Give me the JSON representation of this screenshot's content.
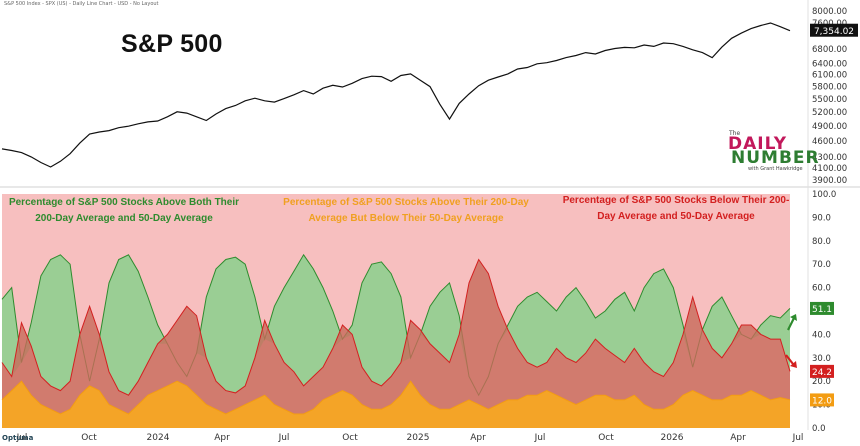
{
  "header_text": "S&P 500 Index - SPX (US) - Daily Line Chart - USD - No Layout",
  "title": "S&P 500",
  "logo": {
    "the": "The",
    "daily": "DAILY",
    "number": "NUMBER",
    "byline": "with Grant Hawkridge"
  },
  "annotations": {
    "green": "Percentage of S&P 500 Stocks Above Both Their 200-Day Average and 50-Day Average",
    "orange": "Percentage of S&P 500 Stocks Above Their 200-Day Average But Below Their 50-Day Average",
    "red": "Percentage of S&P 500 Stocks Below Their 200-Day Average and 50-Day Average"
  },
  "brand_label": "Optuma",
  "colors": {
    "price_line": "#111111",
    "green": "#2e8b2e",
    "green_fill": "#8fcf8f",
    "orange": "#f39c12",
    "orange_fill": "#f5a623",
    "red": "#d32020",
    "red_fill": "#f08a8a",
    "axis_text": "#333333",
    "divider": "#d0d0d0"
  },
  "chart_data": [
    {
      "type": "line",
      "title": "S&P 500",
      "series": [
        {
          "values": [
            4450,
            4420,
            4380,
            4300,
            4200,
            4120,
            4220,
            4360,
            4560,
            4740,
            4780,
            4810,
            4870,
            4900,
            4950,
            4990,
            5010,
            5100,
            5210,
            5180,
            5100,
            5020,
            5160,
            5280,
            5350,
            5460,
            5520,
            5460,
            5430,
            5510,
            5600,
            5700,
            5620,
            5760,
            5830,
            5790,
            5880,
            6000,
            6060,
            6050,
            5930,
            6080,
            6120,
            5960,
            5800,
            5380,
            5050,
            5400,
            5620,
            5820,
            5960,
            6040,
            6120,
            6250,
            6290,
            6390,
            6420,
            6480,
            6560,
            6620,
            6700,
            6660,
            6760,
            6820,
            6850,
            6840,
            6920,
            6880,
            6980,
            6960,
            6880,
            6780,
            6700,
            6560,
            6860,
            7120,
            7280,
            7420,
            7520,
            7600,
            7480,
            7354
          ]
        }
      ],
      "last_value_label": "7,354.02",
      "ylim": [
        3800,
        8100
      ],
      "y_ticks": [
        "8000.00",
        "7600.00",
        "7354.02",
        "6800.00",
        "6400.00",
        "6100.00",
        "5800.00",
        "5500.00",
        "5200.00",
        "4900.00",
        "4600.00",
        "4300.00",
        "4100.00",
        "3900.00"
      ],
      "log_scale": true,
      "grid": false
    },
    {
      "type": "area",
      "series": [
        {
          "name": "Percentage of S&P 500 Stocks Above Both Their 200-Day Average and 50-Day Average",
          "values": [
            55,
            60,
            28,
            45,
            65,
            72,
            74,
            70,
            40,
            20,
            38,
            62,
            72,
            74,
            67,
            56,
            44,
            36,
            28,
            22,
            32,
            56,
            68,
            72,
            73,
            70,
            56,
            38,
            52,
            60,
            67,
            74,
            68,
            60,
            50,
            38,
            44,
            62,
            70,
            71,
            66,
            56,
            30,
            40,
            52,
            58,
            62,
            48,
            22,
            14,
            22,
            36,
            44,
            52,
            56,
            58,
            54,
            50,
            56,
            60,
            54,
            47,
            50,
            55,
            58,
            50,
            60,
            66,
            68,
            60,
            44,
            26,
            42,
            52,
            56,
            48,
            40,
            38,
            44,
            48,
            47,
            51.1
          ],
          "last_label": "51.1"
        },
        {
          "name": "Percentage of S&P 500 Stocks Above Their 200-Day Average But Below Their 50-Day Average",
          "values": [
            12,
            16,
            20,
            14,
            10,
            8,
            6,
            8,
            14,
            18,
            16,
            10,
            8,
            6,
            10,
            14,
            16,
            18,
            20,
            18,
            14,
            10,
            8,
            6,
            8,
            10,
            12,
            14,
            10,
            8,
            6,
            6,
            8,
            12,
            14,
            16,
            14,
            10,
            8,
            8,
            10,
            14,
            20,
            14,
            10,
            8,
            8,
            10,
            12,
            10,
            8,
            10,
            12,
            12,
            14,
            14,
            16,
            14,
            12,
            10,
            12,
            14,
            14,
            12,
            12,
            14,
            10,
            8,
            8,
            10,
            14,
            16,
            14,
            12,
            12,
            14,
            14,
            16,
            14,
            12,
            13,
            12.0
          ],
          "last_label": "12.0"
        },
        {
          "name": "Percentage of S&P 500 Stocks Below Their 200-Day Average and 50-Day Average",
          "values": [
            28,
            22,
            45,
            35,
            22,
            18,
            16,
            20,
            40,
            52,
            40,
            24,
            16,
            14,
            20,
            28,
            36,
            40,
            46,
            52,
            48,
            30,
            20,
            16,
            15,
            18,
            30,
            46,
            36,
            28,
            24,
            18,
            22,
            26,
            34,
            44,
            40,
            26,
            20,
            18,
            22,
            28,
            46,
            42,
            36,
            32,
            28,
            40,
            62,
            72,
            66,
            52,
            42,
            34,
            28,
            26,
            28,
            34,
            30,
            28,
            32,
            38,
            34,
            31,
            28,
            34,
            28,
            24,
            22,
            28,
            40,
            56,
            42,
            34,
            30,
            36,
            44,
            44,
            40,
            38,
            38,
            24.2
          ],
          "last_label": "24.2"
        }
      ],
      "ylim": [
        0,
        100
      ],
      "y_ticks": [
        "100.0",
        "90.0",
        "80.0",
        "70.0",
        "60.0",
        "50.0",
        "40.0",
        "30.0",
        "20.0",
        "10.0",
        "0.0"
      ],
      "x_ticks": [
        "Jul",
        "Oct",
        "2024",
        "Apr",
        "Jul",
        "Oct",
        "2025",
        "Apr",
        "Jul",
        "Oct",
        "2026",
        "Apr",
        "Jul"
      ],
      "grid": false
    }
  ]
}
